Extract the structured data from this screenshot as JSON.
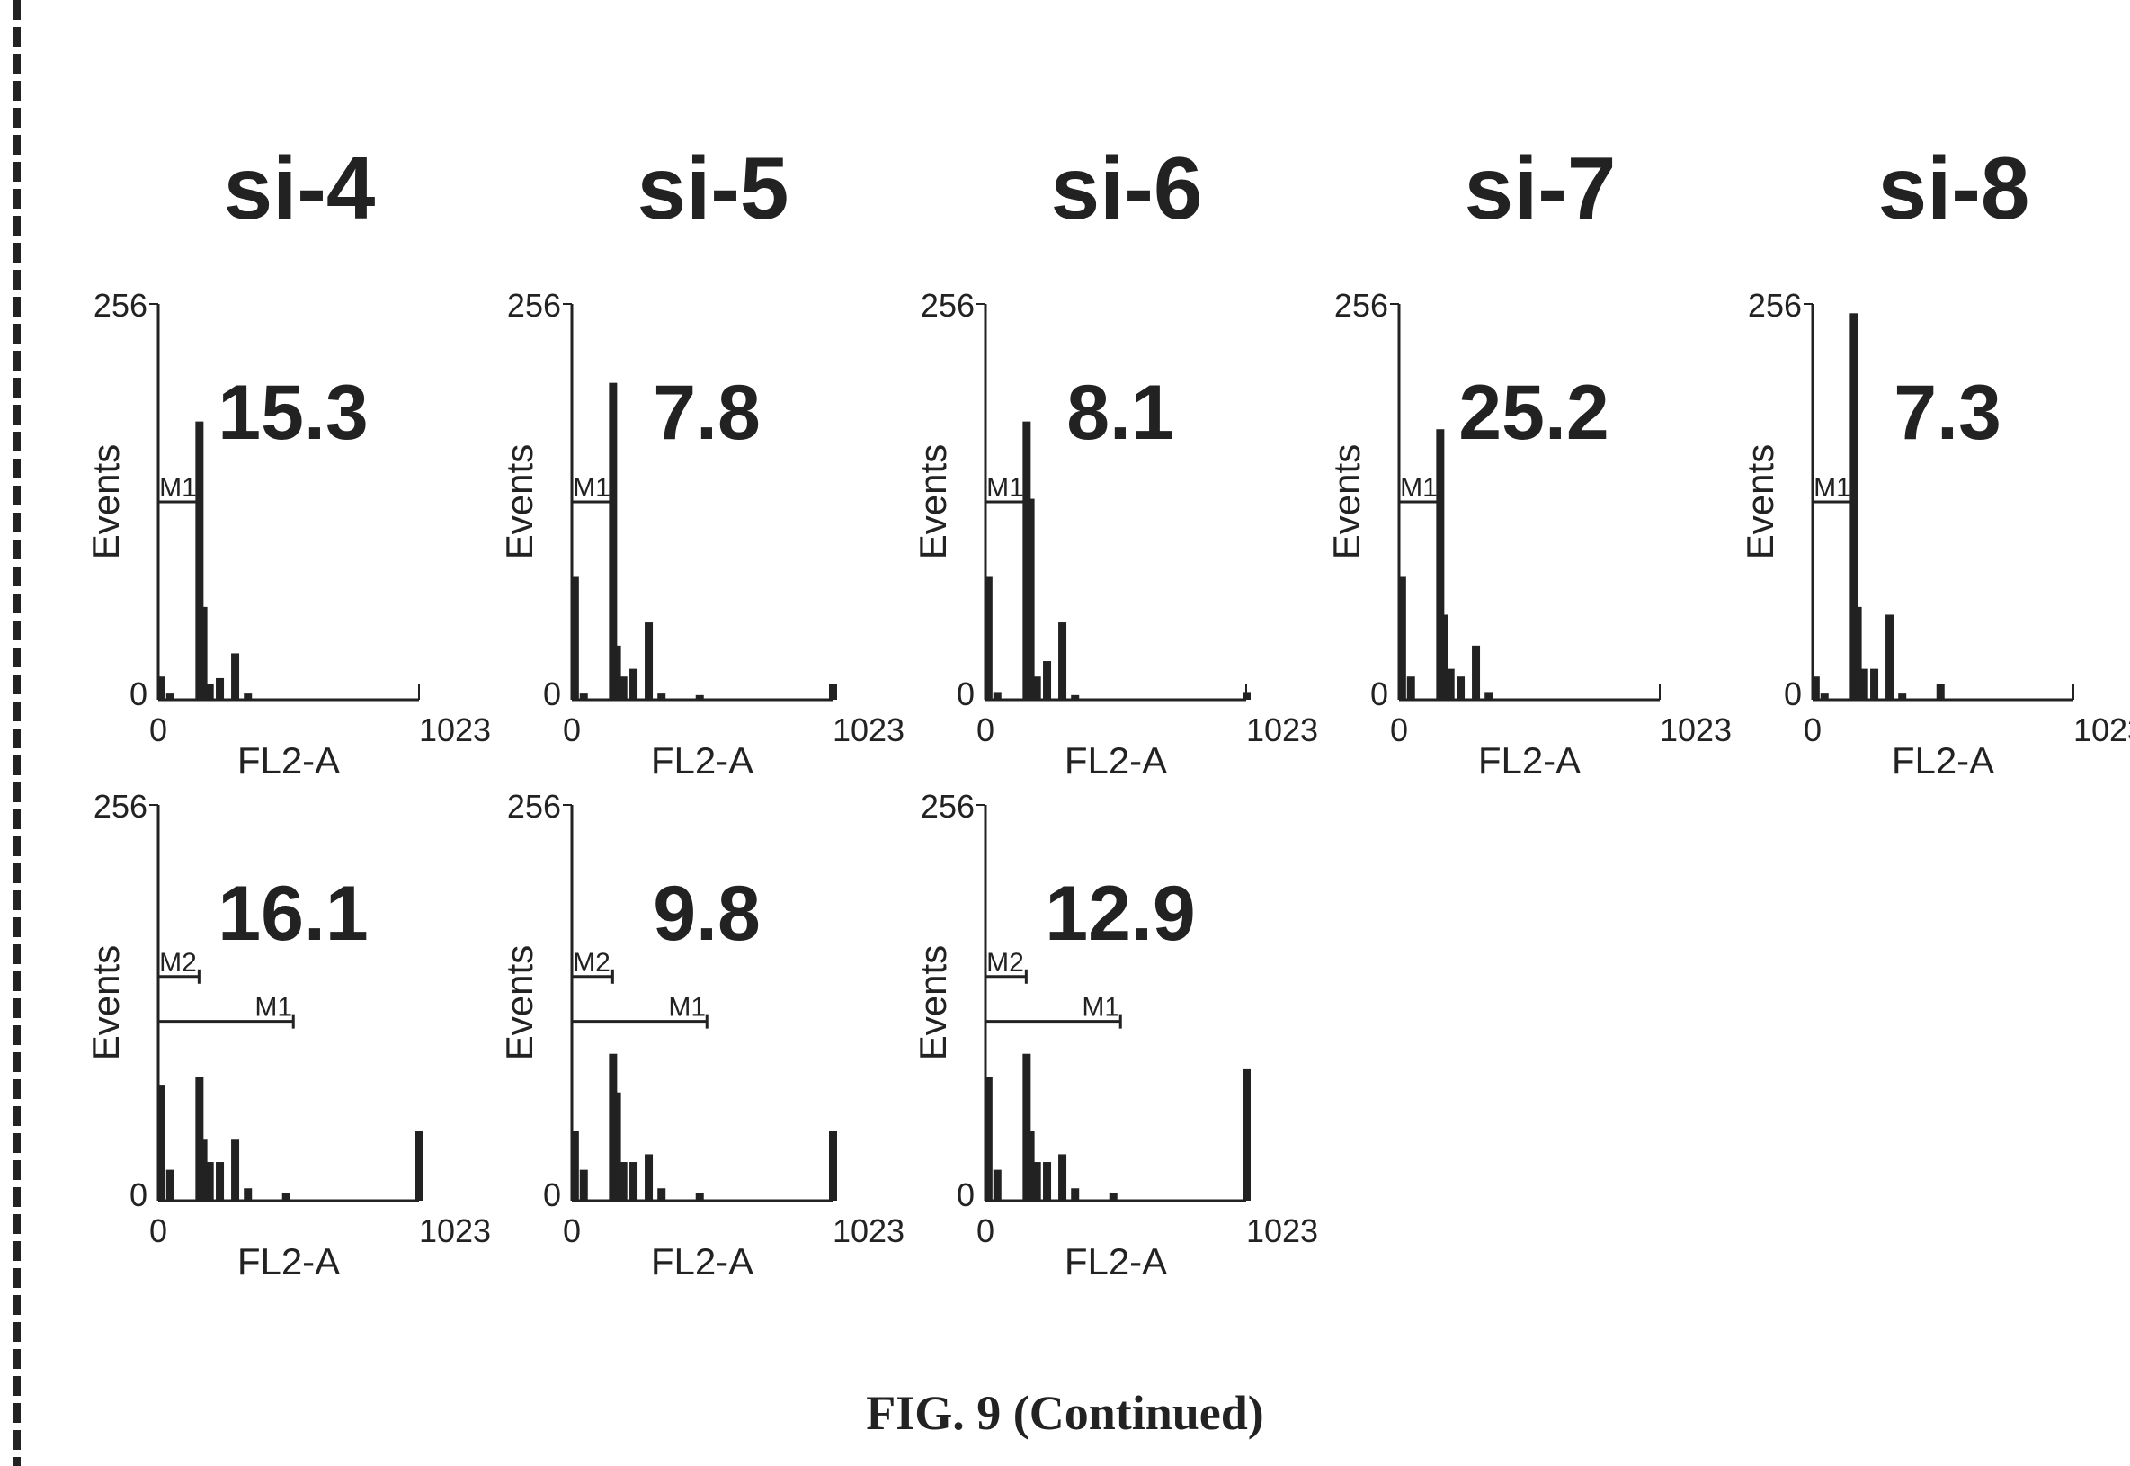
{
  "figure": {
    "caption": "FIG. 9 (Continued)",
    "columns": [
      "si-4",
      "si-5",
      "si-6",
      "si-7",
      "si-8"
    ]
  },
  "chart_data": [
    {
      "type": "bar",
      "panel": "si-4 top",
      "title": "si-4",
      "annotation": "15.3",
      "xlabel": "FL2-A",
      "ylabel": "Events",
      "xlim": [
        0,
        1023
      ],
      "ylim": [
        0,
        256
      ],
      "x_ticks": [
        "0",
        "1023"
      ],
      "y_ticks": [
        "0",
        "256"
      ],
      "markers": [
        {
          "label": "M1",
          "range": [
            0,
            160
          ]
        }
      ],
      "x": [
        10,
        45,
        160,
        175,
        200,
        240,
        300,
        350
      ],
      "values": [
        15,
        4,
        180,
        60,
        10,
        14,
        30,
        4
      ]
    },
    {
      "type": "bar",
      "panel": "si-5 top",
      "title": "si-5",
      "annotation": "7.8",
      "xlabel": "FL2-A",
      "ylabel": "Events",
      "xlim": [
        0,
        1023
      ],
      "ylim": [
        0,
        256
      ],
      "x_ticks": [
        "0",
        "1023"
      ],
      "y_ticks": [
        "0",
        "256"
      ],
      "markers": [
        {
          "label": "M1",
          "range": [
            0,
            160
          ]
        }
      ],
      "x": [
        10,
        45,
        160,
        175,
        200,
        240,
        300,
        350,
        500,
        1023
      ],
      "values": [
        80,
        4,
        205,
        35,
        15,
        20,
        50,
        4,
        3,
        10
      ]
    },
    {
      "type": "bar",
      "panel": "si-6 top",
      "title": "si-6",
      "annotation": "8.1",
      "xlabel": "FL2-A",
      "ylabel": "Events",
      "xlim": [
        0,
        1023
      ],
      "ylim": [
        0,
        256
      ],
      "x_ticks": [
        "0",
        "1023"
      ],
      "y_ticks": [
        "0",
        "256"
      ],
      "markers": [
        {
          "label": "M1",
          "range": [
            0,
            160
          ]
        }
      ],
      "x": [
        10,
        45,
        160,
        175,
        200,
        240,
        300,
        350,
        1023
      ],
      "values": [
        80,
        5,
        180,
        130,
        15,
        25,
        50,
        3,
        5
      ]
    },
    {
      "type": "bar",
      "panel": "si-7 top",
      "title": "si-7",
      "annotation": "25.2",
      "xlabel": "FL2-A",
      "ylabel": "Events",
      "xlim": [
        0,
        1023
      ],
      "ylim": [
        0,
        256
      ],
      "x_ticks": [
        "0",
        "1023"
      ],
      "y_ticks": [
        "0",
        "256"
      ],
      "markers": [
        {
          "label": "M1",
          "range": [
            0,
            160
          ]
        }
      ],
      "x": [
        10,
        45,
        160,
        175,
        200,
        240,
        300,
        350
      ],
      "values": [
        80,
        15,
        175,
        55,
        20,
        15,
        35,
        5
      ]
    },
    {
      "type": "bar",
      "panel": "si-8 top",
      "title": "si-8",
      "annotation": "7.3",
      "xlabel": "FL2-A",
      "ylabel": "Events",
      "xlim": [
        0,
        1023
      ],
      "ylim": [
        0,
        256
      ],
      "x_ticks": [
        "0",
        "1023"
      ],
      "y_ticks": [
        "0",
        "256"
      ],
      "markers": [
        {
          "label": "M1",
          "range": [
            0,
            160
          ]
        }
      ],
      "x": [
        10,
        45,
        160,
        175,
        200,
        240,
        300,
        350,
        500
      ],
      "values": [
        15,
        4,
        250,
        60,
        20,
        20,
        55,
        4,
        10
      ]
    },
    {
      "type": "bar",
      "panel": "si-4 bottom",
      "title": "",
      "annotation": "16.1",
      "xlabel": "FL2-A",
      "ylabel": "Events",
      "xlim": [
        0,
        1023
      ],
      "ylim": [
        0,
        256
      ],
      "x_ticks": [
        "0",
        "1023"
      ],
      "y_ticks": [
        "0",
        "256"
      ],
      "markers": [
        {
          "label": "M2",
          "range": [
            0,
            160
          ]
        },
        {
          "label": "M1",
          "range": [
            0,
            530
          ]
        }
      ],
      "x": [
        10,
        45,
        160,
        175,
        200,
        240,
        300,
        350,
        500,
        1023
      ],
      "values": [
        75,
        20,
        80,
        40,
        25,
        25,
        40,
        8,
        5,
        45
      ]
    },
    {
      "type": "bar",
      "panel": "si-5 bottom",
      "title": "",
      "annotation": "9.8",
      "xlabel": "FL2-A",
      "ylabel": "Events",
      "xlim": [
        0,
        1023
      ],
      "ylim": [
        0,
        256
      ],
      "x_ticks": [
        "0",
        "1023"
      ],
      "y_ticks": [
        "0",
        "256"
      ],
      "markers": [
        {
          "label": "M2",
          "range": [
            0,
            160
          ]
        },
        {
          "label": "M1",
          "range": [
            0,
            530
          ]
        }
      ],
      "x": [
        10,
        45,
        160,
        175,
        200,
        240,
        300,
        350,
        500,
        1023
      ],
      "values": [
        45,
        20,
        95,
        70,
        25,
        25,
        30,
        8,
        5,
        45
      ]
    },
    {
      "type": "bar",
      "panel": "si-6 bottom",
      "title": "",
      "annotation": "12.9",
      "xlabel": "FL2-A",
      "ylabel": "Events",
      "xlim": [
        0,
        1023
      ],
      "ylim": [
        0,
        256
      ],
      "x_ticks": [
        "0",
        "1023"
      ],
      "y_ticks": [
        "0",
        "256"
      ],
      "markers": [
        {
          "label": "M2",
          "range": [
            0,
            160
          ]
        },
        {
          "label": "M1",
          "range": [
            0,
            530
          ]
        }
      ],
      "x": [
        10,
        45,
        160,
        175,
        200,
        240,
        300,
        350,
        500,
        1023
      ],
      "values": [
        80,
        20,
        95,
        45,
        25,
        25,
        30,
        8,
        5,
        85
      ]
    }
  ]
}
